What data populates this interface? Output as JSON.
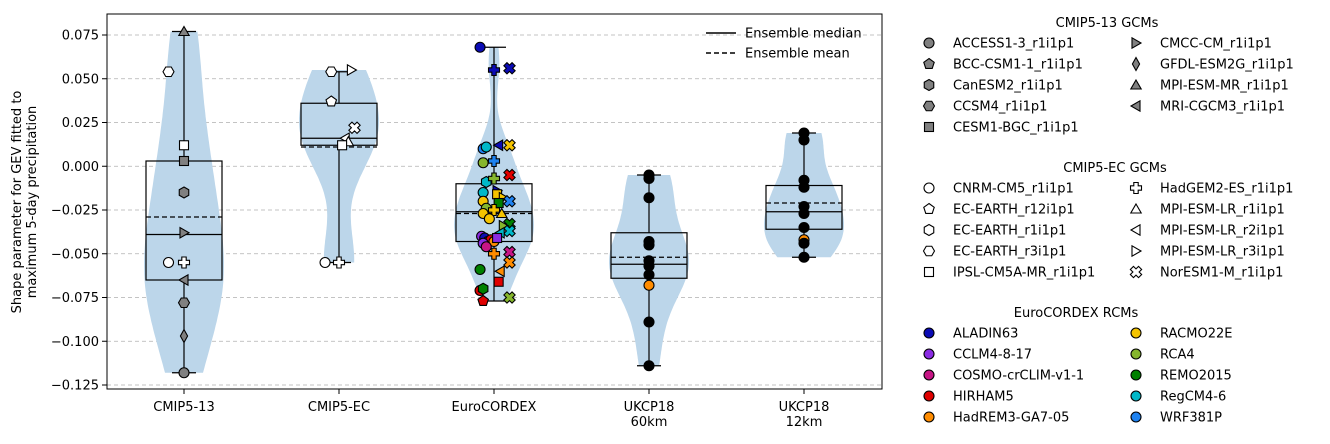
{
  "chart_data": {
    "type": "violin",
    "title": "",
    "xlabel": "",
    "ylabel": [
      "Shape parameter for GEV fitted to",
      "maximum 5-day precipitation"
    ],
    "ylim": [
      -0.127,
      0.087
    ],
    "yticks": [
      0.075,
      0.05,
      0.025,
      0.0,
      -0.025,
      -0.05,
      -0.075,
      -0.1,
      -0.125
    ],
    "ytick_labels": [
      "0.075",
      "0.050",
      "0.025",
      "0.000",
      "−0.025",
      "−0.050",
      "−0.075",
      "−0.100",
      "−0.125"
    ],
    "grid": "horizontal dashed",
    "violin_color": "#bcd6ea",
    "categories": [
      {
        "label_lines": [
          "CMIP5-13"
        ],
        "min": -0.118,
        "q1": -0.065,
        "median": -0.039,
        "mean": -0.029,
        "q3": 0.003,
        "max": 0.077
      },
      {
        "label_lines": [
          "CMIP5-EC"
        ],
        "min": -0.055,
        "q1": 0.012,
        "median": 0.016,
        "mean": 0.011,
        "q3": 0.036,
        "max": 0.054
      },
      {
        "label_lines": [
          "EuroCORDEX"
        ],
        "min": -0.077,
        "q1": -0.043,
        "median": -0.026,
        "mean": -0.027,
        "q3": -0.01,
        "max": 0.068
      },
      {
        "label_lines": [
          "UKCP18",
          "60km"
        ],
        "min": -0.114,
        "q1": -0.064,
        "median": -0.056,
        "mean": -0.052,
        "q3": -0.038,
        "max": -0.005
      },
      {
        "label_lines": [
          "UKCP18",
          "12km"
        ],
        "min": -0.052,
        "q1": -0.036,
        "median": -0.026,
        "mean": -0.021,
        "q3": -0.011,
        "max": 0.019
      }
    ],
    "points": [
      {
        "cat": 0,
        "dx": -0.1,
        "y": 0.054,
        "marker": "hexagon2",
        "color": "#ffffff"
      },
      {
        "cat": 0,
        "dx": 0.0,
        "y": 0.077,
        "marker": "triangle-up",
        "color": "#808080"
      },
      {
        "cat": 0,
        "dx": 0.0,
        "y": 0.012,
        "marker": "square",
        "color": "#ffffff"
      },
      {
        "cat": 0,
        "dx": 0.0,
        "y": 0.003,
        "marker": "square",
        "color": "#808080"
      },
      {
        "cat": 0,
        "dx": 0.0,
        "y": -0.015,
        "marker": "hexagon",
        "color": "#808080"
      },
      {
        "cat": 0,
        "dx": 0.0,
        "y": -0.038,
        "marker": "triangle-right",
        "color": "#808080"
      },
      {
        "cat": 0,
        "dx": -0.1,
        "y": -0.055,
        "marker": "circle",
        "color": "#ffffff"
      },
      {
        "cat": 0,
        "dx": 0.0,
        "y": -0.055,
        "marker": "plus",
        "color": "#ffffff"
      },
      {
        "cat": 0,
        "dx": 0.0,
        "y": -0.065,
        "marker": "triangle-left",
        "color": "#808080"
      },
      {
        "cat": 0,
        "dx": 0.0,
        "y": -0.078,
        "marker": "hexagon2",
        "color": "#808080"
      },
      {
        "cat": 0,
        "dx": 0.0,
        "y": -0.097,
        "marker": "thin-diamond",
        "color": "#808080"
      },
      {
        "cat": 0,
        "dx": 0.0,
        "y": -0.118,
        "marker": "circle",
        "color": "#808080"
      },
      {
        "cat": 1,
        "dx": -0.05,
        "y": 0.054,
        "marker": "hexagon2",
        "color": "#ffffff"
      },
      {
        "cat": 1,
        "dx": 0.08,
        "y": 0.055,
        "marker": "triangle-right",
        "color": "#ffffff"
      },
      {
        "cat": 1,
        "dx": -0.05,
        "y": 0.037,
        "marker": "pentagon",
        "color": "#ffffff"
      },
      {
        "cat": 1,
        "dx": 0.1,
        "y": 0.022,
        "marker": "x-filled",
        "color": "#ffffff"
      },
      {
        "cat": 1,
        "dx": 0.04,
        "y": 0.016,
        "marker": "triangle-left",
        "color": "#ffffff"
      },
      {
        "cat": 1,
        "dx": 0.06,
        "y": 0.014,
        "marker": "triangle-up",
        "color": "#ffffff"
      },
      {
        "cat": 1,
        "dx": 0.02,
        "y": 0.012,
        "marker": "square",
        "color": "#ffffff"
      },
      {
        "cat": 1,
        "dx": -0.09,
        "y": -0.055,
        "marker": "circle",
        "color": "#ffffff"
      },
      {
        "cat": 1,
        "dx": 0.0,
        "y": -0.055,
        "marker": "plus",
        "color": "#ffffff"
      },
      {
        "cat": 2,
        "dx": -0.09,
        "y": 0.068,
        "marker": "circle",
        "color": "#0b0bb5"
      },
      {
        "cat": 2,
        "dx": 0.0,
        "y": 0.055,
        "marker": "plus",
        "color": "#0b0bb5"
      },
      {
        "cat": 2,
        "dx": 0.1,
        "y": 0.056,
        "marker": "x-filled",
        "color": "#0b0bb5"
      },
      {
        "cat": 2,
        "dx": 0.03,
        "y": 0.012,
        "marker": "triangle-left",
        "color": "#0b0bb5"
      },
      {
        "cat": 2,
        "dx": 0.1,
        "y": 0.012,
        "marker": "x-filled",
        "color": "#f5c400"
      },
      {
        "cat": 2,
        "dx": -0.07,
        "y": 0.01,
        "marker": "circle",
        "color": "#1e82f0"
      },
      {
        "cat": 2,
        "dx": -0.05,
        "y": 0.011,
        "marker": "circle",
        "color": "#00b8c8"
      },
      {
        "cat": 2,
        "dx": -0.07,
        "y": 0.002,
        "marker": "circle",
        "color": "#86b62d"
      },
      {
        "cat": 2,
        "dx": 0.0,
        "y": 0.003,
        "marker": "plus",
        "color": "#1e82f0"
      },
      {
        "cat": 2,
        "dx": 0.1,
        "y": -0.005,
        "marker": "x-filled",
        "color": "#e00000"
      },
      {
        "cat": 2,
        "dx": -0.05,
        "y": -0.009,
        "marker": "hexagon",
        "color": "#00b8c8"
      },
      {
        "cat": 2,
        "dx": 0.0,
        "y": -0.007,
        "marker": "plus",
        "color": "#86b62d"
      },
      {
        "cat": 2,
        "dx": 0.02,
        "y": -0.014,
        "marker": "triangle-right",
        "color": "#0b0bb5"
      },
      {
        "cat": 2,
        "dx": -0.07,
        "y": -0.015,
        "marker": "circle",
        "color": "#00b8c8"
      },
      {
        "cat": 2,
        "dx": 0.02,
        "y": -0.016,
        "marker": "square",
        "color": "#f5c400"
      },
      {
        "cat": 2,
        "dx": 0.06,
        "y": -0.018,
        "marker": "triangle-right",
        "color": "#f5c400"
      },
      {
        "cat": 2,
        "dx": -0.07,
        "y": -0.02,
        "marker": "circle",
        "color": "#f5c400"
      },
      {
        "cat": 2,
        "dx": 0.1,
        "y": -0.02,
        "marker": "x-filled",
        "color": "#1e82f0"
      },
      {
        "cat": 2,
        "dx": 0.03,
        "y": -0.021,
        "marker": "square",
        "color": "#008000"
      },
      {
        "cat": 2,
        "dx": -0.05,
        "y": -0.024,
        "marker": "circle",
        "color": "#86b62d"
      },
      {
        "cat": 2,
        "dx": 0.0,
        "y": -0.025,
        "marker": "plus",
        "color": "#f5c400"
      },
      {
        "cat": 2,
        "dx": -0.07,
        "y": -0.027,
        "marker": "circle",
        "color": "#f5c400"
      },
      {
        "cat": 2,
        "dx": 0.05,
        "y": -0.027,
        "marker": "triangle-up",
        "color": "#f5c400"
      },
      {
        "cat": 2,
        "dx": -0.03,
        "y": -0.03,
        "marker": "circle",
        "color": "#f5c400"
      },
      {
        "cat": 2,
        "dx": 0.1,
        "y": -0.033,
        "marker": "x-filled",
        "color": "#008000"
      },
      {
        "cat": 2,
        "dx": 0.06,
        "y": -0.034,
        "marker": "triangle-right",
        "color": "#86b62d"
      },
      {
        "cat": 2,
        "dx": 0.1,
        "y": -0.037,
        "marker": "x-filled",
        "color": "#00b8c8"
      },
      {
        "cat": 2,
        "dx": 0.04,
        "y": -0.038,
        "marker": "triangle-left",
        "color": "#00b8c8"
      },
      {
        "cat": 2,
        "dx": -0.08,
        "y": -0.04,
        "marker": "circle",
        "color": "#8a2be2"
      },
      {
        "cat": 2,
        "dx": -0.06,
        "y": -0.041,
        "marker": "circle",
        "color": "#0b0bb5"
      },
      {
        "cat": 2,
        "dx": -0.04,
        "y": -0.043,
        "marker": "circle",
        "color": "#c71585"
      },
      {
        "cat": 2,
        "dx": -0.02,
        "y": -0.042,
        "marker": "circle",
        "color": "#e00000"
      },
      {
        "cat": 2,
        "dx": -0.07,
        "y": -0.044,
        "marker": "circle",
        "color": "#8a2be2"
      },
      {
        "cat": 2,
        "dx": 0.0,
        "y": -0.043,
        "marker": "circle",
        "color": "#ff8c00"
      },
      {
        "cat": 2,
        "dx": 0.02,
        "y": -0.041,
        "marker": "square",
        "color": "#8a2be2"
      },
      {
        "cat": 2,
        "dx": -0.05,
        "y": -0.046,
        "marker": "circle",
        "color": "#c71585"
      },
      {
        "cat": 2,
        "dx": 0.1,
        "y": -0.049,
        "marker": "x-filled",
        "color": "#c71585"
      },
      {
        "cat": 2,
        "dx": 0.0,
        "y": -0.05,
        "marker": "plus",
        "color": "#ff8c00"
      },
      {
        "cat": 2,
        "dx": 0.1,
        "y": -0.055,
        "marker": "x-filled",
        "color": "#ff8c00"
      },
      {
        "cat": 2,
        "dx": -0.09,
        "y": -0.059,
        "marker": "circle",
        "color": "#008000"
      },
      {
        "cat": 2,
        "dx": 0.04,
        "y": -0.06,
        "marker": "triangle-left",
        "color": "#ff8c00"
      },
      {
        "cat": 2,
        "dx": 0.03,
        "y": -0.066,
        "marker": "square",
        "color": "#e00000"
      },
      {
        "cat": 2,
        "dx": -0.09,
        "y": -0.071,
        "marker": "circle",
        "color": "#e00000"
      },
      {
        "cat": 2,
        "dx": -0.07,
        "y": -0.07,
        "marker": "hexagon",
        "color": "#008000"
      },
      {
        "cat": 2,
        "dx": -0.07,
        "y": -0.077,
        "marker": "pentagon",
        "color": "#e00000"
      },
      {
        "cat": 2,
        "dx": 0.1,
        "y": -0.075,
        "marker": "x-filled",
        "color": "#86b62d"
      },
      {
        "cat": 3,
        "dx": 0.0,
        "y": -0.005,
        "marker": "circle",
        "color": "#000000"
      },
      {
        "cat": 3,
        "dx": 0.0,
        "y": -0.007,
        "marker": "circle",
        "color": "#000000"
      },
      {
        "cat": 3,
        "dx": 0.0,
        "y": -0.018,
        "marker": "circle",
        "color": "#000000"
      },
      {
        "cat": 3,
        "dx": 0.0,
        "y": -0.043,
        "marker": "circle",
        "color": "#000000"
      },
      {
        "cat": 3,
        "dx": 0.0,
        "y": -0.045,
        "marker": "circle",
        "color": "#000000"
      },
      {
        "cat": 3,
        "dx": 0.0,
        "y": -0.054,
        "marker": "circle",
        "color": "#000000"
      },
      {
        "cat": 3,
        "dx": 0.0,
        "y": -0.057,
        "marker": "circle",
        "color": "#000000"
      },
      {
        "cat": 3,
        "dx": 0.0,
        "y": -0.062,
        "marker": "circle",
        "color": "#000000"
      },
      {
        "cat": 3,
        "dx": 0.0,
        "y": -0.068,
        "marker": "circle",
        "color": "#ff8c00"
      },
      {
        "cat": 3,
        "dx": 0.0,
        "y": -0.089,
        "marker": "circle",
        "color": "#000000"
      },
      {
        "cat": 3,
        "dx": 0.0,
        "y": -0.114,
        "marker": "circle",
        "color": "#000000"
      },
      {
        "cat": 4,
        "dx": 0.0,
        "y": 0.019,
        "marker": "circle",
        "color": "#000000"
      },
      {
        "cat": 4,
        "dx": 0.0,
        "y": 0.015,
        "marker": "circle",
        "color": "#000000"
      },
      {
        "cat": 4,
        "dx": 0.0,
        "y": -0.008,
        "marker": "circle",
        "color": "#000000"
      },
      {
        "cat": 4,
        "dx": 0.0,
        "y": -0.012,
        "marker": "circle",
        "color": "#000000"
      },
      {
        "cat": 4,
        "dx": 0.0,
        "y": -0.023,
        "marker": "circle",
        "color": "#000000"
      },
      {
        "cat": 4,
        "dx": 0.0,
        "y": -0.027,
        "marker": "circle",
        "color": "#000000"
      },
      {
        "cat": 4,
        "dx": 0.0,
        "y": -0.035,
        "marker": "circle",
        "color": "#000000"
      },
      {
        "cat": 4,
        "dx": 0.0,
        "y": -0.042,
        "marker": "circle",
        "color": "#ff8c00"
      },
      {
        "cat": 4,
        "dx": 0.0,
        "y": -0.044,
        "marker": "circle",
        "color": "#000000"
      },
      {
        "cat": 4,
        "dx": 0.0,
        "y": -0.052,
        "marker": "circle",
        "color": "#000000"
      }
    ],
    "line_legend": [
      {
        "label": "Ensemble median",
        "style": "solid"
      },
      {
        "label": "Ensemble mean",
        "style": "dashed"
      }
    ],
    "legend_groups": [
      {
        "title": "CMIP5-13 GCMs",
        "items": [
          {
            "label": "ACCESS1-3_r1i1p1",
            "marker": "circle",
            "color": "#808080"
          },
          {
            "label": "BCC-CSM1-1_r1i1p1",
            "marker": "pentagon",
            "color": "#808080"
          },
          {
            "label": "CanESM2_r1i1p1",
            "marker": "hexagon",
            "color": "#808080"
          },
          {
            "label": "CCSM4_r1i1p1",
            "marker": "hexagon2",
            "color": "#808080"
          },
          {
            "label": "CESM1-BGC_r1i1p1",
            "marker": "square",
            "color": "#808080"
          },
          {
            "label": "CMCC-CM_r1i1p1",
            "marker": "triangle-right",
            "color": "#808080"
          },
          {
            "label": "GFDL-ESM2G_r1i1p1",
            "marker": "thin-diamond",
            "color": "#808080"
          },
          {
            "label": "MPI-ESM-MR_r1i1p1",
            "marker": "triangle-up",
            "color": "#808080"
          },
          {
            "label": "MRI-CGCM3_r1i1p1",
            "marker": "triangle-left",
            "color": "#808080"
          }
        ]
      },
      {
        "title": "CMIP5-EC GCMs",
        "items": [
          {
            "label": "CNRM-CM5_r1i1p1",
            "marker": "circle",
            "color": "#ffffff"
          },
          {
            "label": "EC-EARTH_r12i1p1",
            "marker": "pentagon",
            "color": "#ffffff"
          },
          {
            "label": "EC-EARTH_r1i1p1",
            "marker": "hexagon",
            "color": "#ffffff"
          },
          {
            "label": "EC-EARTH_r3i1p1",
            "marker": "hexagon2",
            "color": "#ffffff"
          },
          {
            "label": "IPSL-CM5A-MR_r1i1p1",
            "marker": "square",
            "color": "#ffffff"
          },
          {
            "label": "HadGEM2-ES_r1i1p1",
            "marker": "plus",
            "color": "#ffffff"
          },
          {
            "label": "MPI-ESM-LR_r1i1p1",
            "marker": "triangle-up",
            "color": "#ffffff"
          },
          {
            "label": "MPI-ESM-LR_r2i1p1",
            "marker": "triangle-left",
            "color": "#ffffff"
          },
          {
            "label": "MPI-ESM-LR_r3i1p1",
            "marker": "triangle-right",
            "color": "#ffffff"
          },
          {
            "label": "NorESM1-M_r1i1p1",
            "marker": "x-filled",
            "color": "#ffffff"
          }
        ]
      },
      {
        "title": "EuroCORDEX RCMs",
        "items": [
          {
            "label": "ALADIN63",
            "marker": "circle",
            "color": "#0b0bb5"
          },
          {
            "label": "CCLM4-8-17",
            "marker": "circle",
            "color": "#8a2be2"
          },
          {
            "label": "COSMO-crCLIM-v1-1",
            "marker": "circle",
            "color": "#c71585"
          },
          {
            "label": "HIRHAM5",
            "marker": "circle",
            "color": "#e00000"
          },
          {
            "label": "HadREM3-GA7-05",
            "marker": "circle",
            "color": "#ff8c00"
          },
          {
            "label": "RACMO22E",
            "marker": "circle",
            "color": "#f5c400"
          },
          {
            "label": "RCA4",
            "marker": "circle",
            "color": "#86b62d"
          },
          {
            "label": "REMO2015",
            "marker": "circle",
            "color": "#008000"
          },
          {
            "label": "RegCM4-6",
            "marker": "circle",
            "color": "#00b8c8"
          },
          {
            "label": "WRF381P",
            "marker": "circle",
            "color": "#1e82f0"
          }
        ]
      }
    ]
  }
}
